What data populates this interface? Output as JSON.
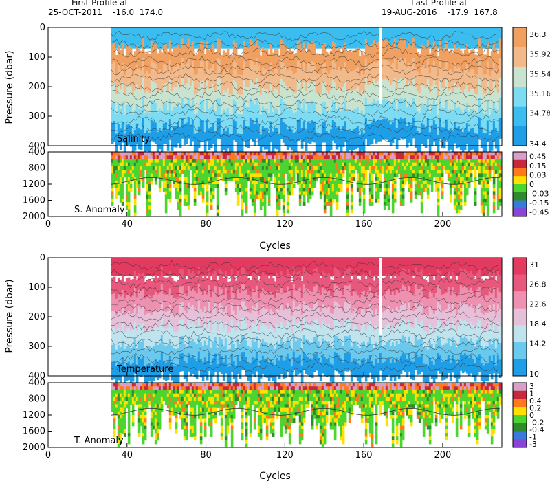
{
  "header": {
    "first_title": "First Profile at",
    "first_line": "25-OCT-2011    -16.0  174.0",
    "last_title": "Last Profile at",
    "last_line": "19-AUG-2016    -17.9  167.8"
  },
  "colors": {
    "salinity": [
      "#1f9ee8",
      "#3bbdf0",
      "#7ddcf4",
      "#c8e4d0",
      "#f2b98a",
      "#f0a060"
    ],
    "temperature": [
      "#1f9ee8",
      "#6cc9ee",
      "#bfe4ee",
      "#e6bfd8",
      "#ee90b0",
      "#e8587c",
      "#e33a60"
    ],
    "anomaly": [
      "#d8a0c8",
      "#c8283c",
      "#ff7a1a",
      "#ffe100",
      "#4cd430",
      "#2e8a2a",
      "#3a7ad8",
      "#8a44d8"
    ]
  },
  "chart_data": [
    {
      "type": "heatmap",
      "title": "",
      "panel_label": "Salinity",
      "xlabel": "",
      "ylabel": "Pressure (dbar)",
      "xlim": [
        0,
        230
      ],
      "ylim": [
        400,
        0
      ],
      "yticks": [
        0,
        100,
        200,
        300,
        400
      ],
      "xticks": [
        0,
        40,
        80,
        120,
        160,
        200
      ],
      "data_x_range": [
        32,
        229
      ],
      "colorbar_ticks": [
        "36.3",
        "35.92",
        "35.54",
        "35.16",
        "34.78",
        "34.4"
      ],
      "legend": "right",
      "grid": false
    },
    {
      "type": "heatmap",
      "title": "",
      "panel_label": "S. Anomaly",
      "xlabel": "Cycles",
      "ylabel": "",
      "xlim": [
        0,
        230
      ],
      "ylim": [
        2000,
        400
      ],
      "yticks": [
        400,
        800,
        1200,
        1600,
        2000
      ],
      "xticks": [
        0,
        40,
        80,
        120,
        160,
        200
      ],
      "data_x_range": [
        32,
        229
      ],
      "colorbar_ticks": [
        "0.45",
        "0.15",
        "0.03",
        "0",
        "-0.03",
        "-0.15",
        "-0.45"
      ],
      "legend": "right",
      "grid": false
    },
    {
      "type": "heatmap",
      "title": "",
      "panel_label": "Temperature",
      "xlabel": "",
      "ylabel": "Pressure (dbar)",
      "xlim": [
        0,
        230
      ],
      "ylim": [
        400,
        0
      ],
      "yticks": [
        0,
        100,
        200,
        300,
        400
      ],
      "xticks": [
        0,
        40,
        80,
        120,
        160,
        200
      ],
      "data_x_range": [
        32,
        229
      ],
      "colorbar_ticks": [
        "31",
        "26.8",
        "22.6",
        "18.4",
        "14.2",
        "10"
      ],
      "legend": "right",
      "grid": false
    },
    {
      "type": "heatmap",
      "title": "",
      "panel_label": "T. Anomaly",
      "xlabel": "Cycles",
      "ylabel": "",
      "xlim": [
        0,
        230
      ],
      "ylim": [
        2000,
        400
      ],
      "yticks": [
        400,
        800,
        1200,
        1600,
        2000
      ],
      "xticks": [
        0,
        40,
        80,
        120,
        160,
        200
      ],
      "data_x_range": [
        32,
        229
      ],
      "colorbar_ticks": [
        "3",
        "1",
        "0.4",
        "0.2",
        "0",
        "-0.2",
        "-0.4",
        "-1",
        "-3"
      ],
      "legend": "right",
      "grid": false
    }
  ]
}
